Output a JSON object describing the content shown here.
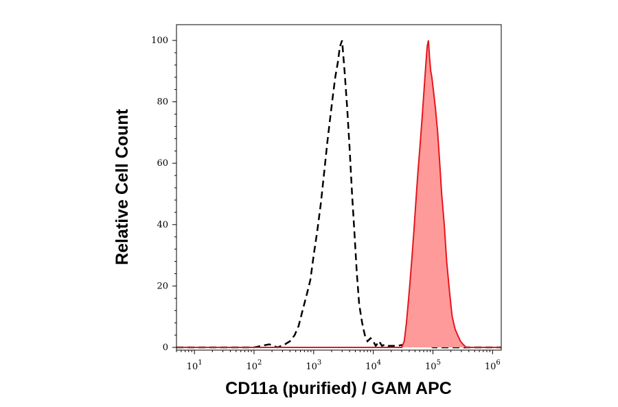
{
  "chart_data": {
    "type": "area",
    "title": "",
    "xlabel": "CD11a (purified) / GAM APC",
    "ylabel": "Relative Cell Count",
    "x_scale": "log",
    "xlim": [
      5,
      1400000
    ],
    "ylim": [
      0,
      105
    ],
    "x_ticks": [
      {
        "base": "10",
        "exp": "1",
        "value": 10
      },
      {
        "base": "10",
        "exp": "2",
        "value": 100
      },
      {
        "base": "10",
        "exp": "3",
        "value": 1000
      },
      {
        "base": "10",
        "exp": "4",
        "value": 10000
      },
      {
        "base": "10",
        "exp": "5",
        "value": 100000
      },
      {
        "base": "10",
        "exp": "6",
        "value": 1000000
      }
    ],
    "y_ticks": [
      "0",
      "20",
      "40",
      "60",
      "80",
      "100"
    ],
    "grid": false,
    "series": [
      {
        "style": "dashed-line",
        "color": "#000000",
        "x": [
          5,
          100,
          180,
          250,
          330,
          400,
          480,
          560,
          650,
          760,
          880,
          1000,
          1150,
          1320,
          1500,
          1700,
          1900,
          2100,
          2300,
          2550,
          2750,
          3000,
          3300,
          3650,
          4000,
          4400,
          4800,
          5300,
          5800,
          6500,
          7200,
          8000,
          9000,
          10000,
          11000,
          12500,
          14000,
          16000,
          18000,
          20000,
          25000,
          35000,
          45000,
          60000,
          80000,
          100000,
          1400000
        ],
        "y": [
          0,
          0,
          1,
          0,
          1,
          2,
          4,
          7,
          12,
          17,
          22,
          30,
          38,
          47,
          57,
          67,
          75,
          82,
          88,
          93,
          98,
          100,
          90,
          78,
          65,
          50,
          38,
          24,
          14,
          8,
          4,
          2,
          3,
          2,
          0.5,
          2,
          0.5,
          1,
          0.5,
          0.5,
          0.5,
          1,
          0.5,
          0.5,
          1,
          0,
          0
        ]
      },
      {
        "style": "filled-area",
        "color": "#e8141b",
        "fill": "#fe9a9a",
        "x": [
          5,
          30000,
          33000,
          36000,
          40000,
          44000,
          48000,
          52000,
          56000,
          61000,
          66000,
          71000,
          76000,
          80000,
          84000,
          88000,
          92000,
          96000,
          100000,
          110000,
          120000,
          130000,
          140000,
          155000,
          170000,
          190000,
          210000,
          235000,
          260000,
          290000,
          320000,
          360000,
          1400000
        ],
        "y": [
          0,
          0,
          2,
          8,
          18,
          28,
          38,
          48,
          57,
          66,
          75,
          84,
          92,
          98,
          100,
          94,
          90,
          88,
          85,
          78,
          70,
          60,
          50,
          40,
          28,
          18,
          10,
          6,
          4,
          2,
          1,
          0,
          0
        ]
      }
    ]
  }
}
